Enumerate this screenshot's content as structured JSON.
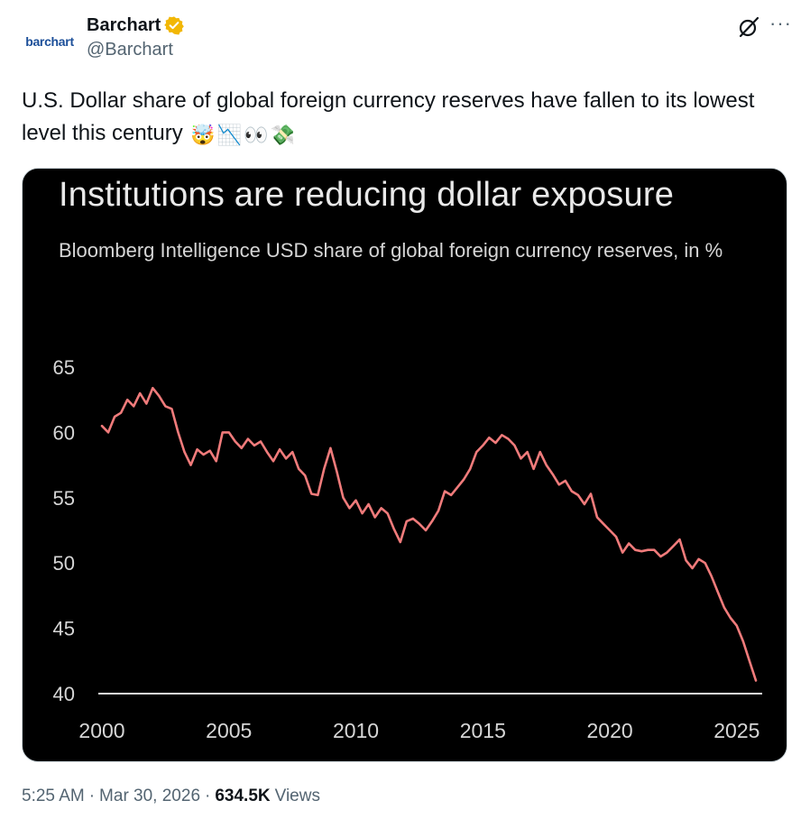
{
  "author": {
    "avatar_text": "barchart",
    "display_name": "Barchart",
    "handle": "@Barchart"
  },
  "header_icons": [
    "grok-icon",
    "more-icon"
  ],
  "tweet": {
    "text": "U.S. Dollar share of global foreign currency reserves have fallen to its lowest level this century",
    "emojis": [
      "🤯",
      "📉",
      "👀",
      "💸"
    ]
  },
  "meta": {
    "time": "5:25 AM",
    "date": "Mar 30, 2026",
    "views": "634.5K",
    "views_label": "Views"
  },
  "colors": {
    "line": "#f07b7b",
    "chart_background": "#000000",
    "verified": "#f2b705"
  },
  "chart_data": {
    "type": "line",
    "title": "Institutions are reducing dollar exposure",
    "subtitle": "Bloomberg Intelligence USD share of global foreign currency reserves, in %",
    "xlabel": "",
    "ylabel": "",
    "xlim": [
      2000,
      2026
    ],
    "ylim": [
      40,
      65
    ],
    "x_ticks": [
      "2000",
      "2005",
      "2010",
      "2015",
      "2020",
      "2025"
    ],
    "y_ticks": [
      "65",
      "60",
      "55",
      "50",
      "45",
      "40"
    ],
    "grid": false,
    "series": [
      {
        "x": [
          2000.0,
          2000.25,
          2000.5,
          2000.75,
          2001.0,
          2001.25,
          2001.5,
          2001.75,
          2002.0,
          2002.25,
          2002.5,
          2002.75,
          2003.0,
          2003.25,
          2003.5,
          2003.75,
          2004.0,
          2004.25,
          2004.5,
          2004.75,
          2005.0,
          2005.25,
          2005.5,
          2005.75,
          2006.0,
          2006.25,
          2006.5,
          2006.75,
          2007.0,
          2007.25,
          2007.5,
          2007.75,
          2008.0,
          2008.25,
          2008.5,
          2008.75,
          2009.0,
          2009.25,
          2009.5,
          2009.75,
          2010.0,
          2010.25,
          2010.5,
          2010.75,
          2011.0,
          2011.25,
          2011.5,
          2011.75,
          2012.0,
          2012.25,
          2012.5,
          2012.75,
          2013.0,
          2013.25,
          2013.5,
          2013.75,
          2014.0,
          2014.25,
          2014.5,
          2014.75,
          2015.0,
          2015.25,
          2015.5,
          2015.75,
          2016.0,
          2016.25,
          2016.5,
          2016.75,
          2017.0,
          2017.25,
          2017.5,
          2017.75,
          2018.0,
          2018.25,
          2018.5,
          2018.75,
          2019.0,
          2019.25,
          2019.5,
          2019.75,
          2020.0,
          2020.25,
          2020.5,
          2020.75,
          2021.0,
          2021.25,
          2021.5,
          2021.75,
          2022.0,
          2022.25,
          2022.5,
          2022.75,
          2023.0,
          2023.25,
          2023.5,
          2023.75,
          2024.0,
          2024.25,
          2024.5,
          2024.75,
          2025.0,
          2025.25,
          2025.5,
          2025.75
        ],
        "values": [
          60.5,
          60.0,
          61.2,
          61.5,
          62.5,
          62.0,
          63.0,
          62.2,
          63.4,
          62.8,
          62.0,
          61.8,
          60.0,
          58.5,
          57.5,
          58.7,
          58.3,
          58.6,
          57.8,
          60.0,
          60.0,
          59.3,
          58.8,
          59.5,
          59.0,
          59.3,
          58.5,
          57.8,
          58.7,
          58.0,
          58.5,
          57.2,
          56.7,
          55.3,
          55.2,
          57.2,
          58.8,
          57.0,
          55.0,
          54.2,
          54.8,
          53.8,
          54.5,
          53.5,
          54.2,
          53.8,
          52.6,
          51.6,
          53.2,
          53.4,
          53.0,
          52.5,
          53.2,
          54.0,
          55.5,
          55.2,
          55.8,
          56.4,
          57.2,
          58.5,
          59.0,
          59.6,
          59.2,
          59.8,
          59.5,
          59.0,
          58.0,
          58.5,
          57.2,
          58.5,
          57.5,
          56.8,
          56.0,
          56.3,
          55.5,
          55.2,
          54.5,
          55.3,
          53.5,
          53.0,
          52.5,
          52.0,
          50.8,
          51.5,
          51.0,
          50.9,
          51.0,
          51.0,
          50.5,
          50.8,
          51.3,
          51.8,
          50.2,
          49.6,
          50.3,
          50.0,
          49.0,
          47.8,
          46.6,
          45.8,
          45.2,
          44.0,
          42.5,
          41.0
        ]
      }
    ]
  }
}
